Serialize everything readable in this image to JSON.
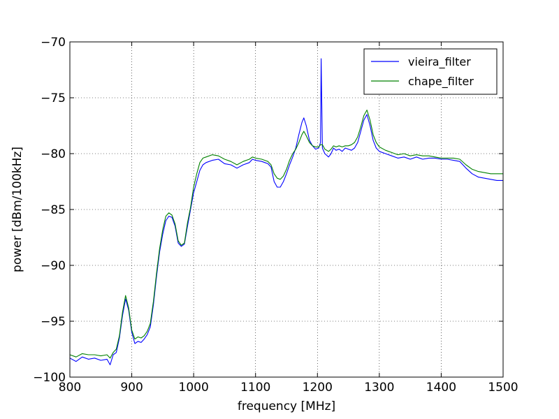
{
  "chart_data": {
    "type": "line",
    "title": "",
    "xlabel": "frequency [MHz]",
    "ylabel": "power [dBm/100kHz]",
    "xlim": [
      800,
      1500
    ],
    "ylim": [
      -100,
      -70
    ],
    "xticks": [
      800,
      900,
      1000,
      1100,
      1200,
      1300,
      1400,
      1500
    ],
    "yticks": [
      -100,
      -95,
      -90,
      -85,
      -80,
      -75,
      -70
    ],
    "xtick_labels": [
      "800",
      "900",
      "1000",
      "1100",
      "1200",
      "1300",
      "1400",
      "1500"
    ],
    "ytick_labels": [
      "−100",
      "−95",
      "−90",
      "−85",
      "−80",
      "−75",
      "−70"
    ],
    "grid": true,
    "legend_position": "top-right",
    "series": [
      {
        "name": "vieira_filter",
        "color": "#0000ff",
        "points": [
          [
            800,
            -98.3
          ],
          [
            810,
            -98.6
          ],
          [
            820,
            -98.2
          ],
          [
            830,
            -98.4
          ],
          [
            840,
            -98.3
          ],
          [
            850,
            -98.5
          ],
          [
            860,
            -98.4
          ],
          [
            865,
            -98.9
          ],
          [
            870,
            -98.0
          ],
          [
            875,
            -97.8
          ],
          [
            880,
            -96.5
          ],
          [
            885,
            -94.5
          ],
          [
            890,
            -93.0
          ],
          [
            895,
            -94.0
          ],
          [
            900,
            -96.0
          ],
          [
            905,
            -97.0
          ],
          [
            910,
            -96.8
          ],
          [
            915,
            -96.9
          ],
          [
            920,
            -96.6
          ],
          [
            925,
            -96.2
          ],
          [
            930,
            -95.5
          ],
          [
            935,
            -93.5
          ],
          [
            940,
            -91.0
          ],
          [
            945,
            -88.8
          ],
          [
            950,
            -87.2
          ],
          [
            955,
            -86.0
          ],
          [
            960,
            -85.6
          ],
          [
            965,
            -85.7
          ],
          [
            970,
            -86.5
          ],
          [
            975,
            -88.0
          ],
          [
            980,
            -88.3
          ],
          [
            985,
            -88.1
          ],
          [
            990,
            -86.5
          ],
          [
            995,
            -85.0
          ],
          [
            1000,
            -83.5
          ],
          [
            1005,
            -82.5
          ],
          [
            1010,
            -81.5
          ],
          [
            1015,
            -81.0
          ],
          [
            1020,
            -80.8
          ],
          [
            1030,
            -80.6
          ],
          [
            1040,
            -80.5
          ],
          [
            1050,
            -80.9
          ],
          [
            1060,
            -81.0
          ],
          [
            1070,
            -81.3
          ],
          [
            1080,
            -81.0
          ],
          [
            1090,
            -80.8
          ],
          [
            1095,
            -80.5
          ],
          [
            1100,
            -80.6
          ],
          [
            1110,
            -80.7
          ],
          [
            1120,
            -80.9
          ],
          [
            1125,
            -81.2
          ],
          [
            1130,
            -82.5
          ],
          [
            1135,
            -83.0
          ],
          [
            1140,
            -83.0
          ],
          [
            1145,
            -82.5
          ],
          [
            1150,
            -81.8
          ],
          [
            1155,
            -81.0
          ],
          [
            1160,
            -80.3
          ],
          [
            1165,
            -79.5
          ],
          [
            1170,
            -78.3
          ],
          [
            1175,
            -77.2
          ],
          [
            1178,
            -76.8
          ],
          [
            1182,
            -77.5
          ],
          [
            1187,
            -78.8
          ],
          [
            1192,
            -79.3
          ],
          [
            1197,
            -79.6
          ],
          [
            1202,
            -79.5
          ],
          [
            1205,
            -79.0
          ],
          [
            1206,
            -71.5
          ],
          [
            1208,
            -79.5
          ],
          [
            1212,
            -80.0
          ],
          [
            1218,
            -80.3
          ],
          [
            1222,
            -80.0
          ],
          [
            1226,
            -79.5
          ],
          [
            1230,
            -79.7
          ],
          [
            1235,
            -79.6
          ],
          [
            1240,
            -79.8
          ],
          [
            1245,
            -79.5
          ],
          [
            1250,
            -79.6
          ],
          [
            1255,
            -79.7
          ],
          [
            1260,
            -79.5
          ],
          [
            1265,
            -79.0
          ],
          [
            1270,
            -78.0
          ],
          [
            1275,
            -77.0
          ],
          [
            1280,
            -76.5
          ],
          [
            1285,
            -77.5
          ],
          [
            1290,
            -78.8
          ],
          [
            1295,
            -79.5
          ],
          [
            1300,
            -79.8
          ],
          [
            1310,
            -80.0
          ],
          [
            1320,
            -80.2
          ],
          [
            1330,
            -80.4
          ],
          [
            1340,
            -80.3
          ],
          [
            1350,
            -80.5
          ],
          [
            1360,
            -80.3
          ],
          [
            1370,
            -80.5
          ],
          [
            1380,
            -80.4
          ],
          [
            1390,
            -80.4
          ],
          [
            1400,
            -80.5
          ],
          [
            1410,
            -80.5
          ],
          [
            1420,
            -80.6
          ],
          [
            1430,
            -80.7
          ],
          [
            1440,
            -81.3
          ],
          [
            1450,
            -81.8
          ],
          [
            1460,
            -82.1
          ],
          [
            1470,
            -82.2
          ],
          [
            1480,
            -82.3
          ],
          [
            1490,
            -82.4
          ],
          [
            1500,
            -82.4
          ]
        ]
      },
      {
        "name": "chape_filter",
        "color": "#008000",
        "points": [
          [
            800,
            -98.0
          ],
          [
            810,
            -98.2
          ],
          [
            820,
            -97.9
          ],
          [
            830,
            -98.0
          ],
          [
            840,
            -98.0
          ],
          [
            850,
            -98.1
          ],
          [
            860,
            -98.0
          ],
          [
            865,
            -98.3
          ],
          [
            870,
            -97.8
          ],
          [
            875,
            -97.5
          ],
          [
            880,
            -96.3
          ],
          [
            885,
            -94.2
          ],
          [
            890,
            -92.7
          ],
          [
            895,
            -93.8
          ],
          [
            900,
            -95.8
          ],
          [
            905,
            -96.6
          ],
          [
            910,
            -96.4
          ],
          [
            915,
            -96.5
          ],
          [
            920,
            -96.3
          ],
          [
            925,
            -95.9
          ],
          [
            930,
            -95.2
          ],
          [
            935,
            -93.2
          ],
          [
            940,
            -90.7
          ],
          [
            945,
            -88.5
          ],
          [
            950,
            -86.8
          ],
          [
            955,
            -85.6
          ],
          [
            960,
            -85.3
          ],
          [
            965,
            -85.5
          ],
          [
            970,
            -86.3
          ],
          [
            975,
            -87.8
          ],
          [
            980,
            -88.2
          ],
          [
            985,
            -88.0
          ],
          [
            990,
            -86.2
          ],
          [
            995,
            -84.8
          ],
          [
            1000,
            -83.0
          ],
          [
            1005,
            -81.8
          ],
          [
            1010,
            -80.8
          ],
          [
            1015,
            -80.4
          ],
          [
            1020,
            -80.3
          ],
          [
            1030,
            -80.1
          ],
          [
            1040,
            -80.2
          ],
          [
            1050,
            -80.5
          ],
          [
            1060,
            -80.7
          ],
          [
            1070,
            -81.0
          ],
          [
            1080,
            -80.7
          ],
          [
            1090,
            -80.5
          ],
          [
            1095,
            -80.3
          ],
          [
            1100,
            -80.4
          ],
          [
            1110,
            -80.5
          ],
          [
            1120,
            -80.7
          ],
          [
            1125,
            -81.0
          ],
          [
            1130,
            -81.8
          ],
          [
            1135,
            -82.2
          ],
          [
            1140,
            -82.3
          ],
          [
            1145,
            -82.0
          ],
          [
            1150,
            -81.4
          ],
          [
            1155,
            -80.6
          ],
          [
            1160,
            -80.0
          ],
          [
            1165,
            -79.6
          ],
          [
            1170,
            -79.0
          ],
          [
            1175,
            -78.3
          ],
          [
            1178,
            -78.0
          ],
          [
            1182,
            -78.4
          ],
          [
            1187,
            -79.0
          ],
          [
            1192,
            -79.3
          ],
          [
            1197,
            -79.4
          ],
          [
            1202,
            -79.4
          ],
          [
            1205,
            -79.2
          ],
          [
            1208,
            -79.2
          ],
          [
            1212,
            -79.6
          ],
          [
            1218,
            -79.8
          ],
          [
            1222,
            -79.6
          ],
          [
            1226,
            -79.3
          ],
          [
            1230,
            -79.4
          ],
          [
            1235,
            -79.3
          ],
          [
            1240,
            -79.4
          ],
          [
            1245,
            -79.3
          ],
          [
            1250,
            -79.3
          ],
          [
            1255,
            -79.2
          ],
          [
            1260,
            -79.0
          ],
          [
            1265,
            -78.5
          ],
          [
            1270,
            -77.6
          ],
          [
            1275,
            -76.6
          ],
          [
            1280,
            -76.1
          ],
          [
            1285,
            -77.0
          ],
          [
            1290,
            -78.3
          ],
          [
            1295,
            -79.0
          ],
          [
            1300,
            -79.4
          ],
          [
            1310,
            -79.7
          ],
          [
            1320,
            -79.9
          ],
          [
            1330,
            -80.1
          ],
          [
            1340,
            -80.0
          ],
          [
            1350,
            -80.2
          ],
          [
            1360,
            -80.1
          ],
          [
            1370,
            -80.2
          ],
          [
            1380,
            -80.2
          ],
          [
            1390,
            -80.3
          ],
          [
            1400,
            -80.4
          ],
          [
            1410,
            -80.4
          ],
          [
            1420,
            -80.4
          ],
          [
            1430,
            -80.5
          ],
          [
            1440,
            -81.0
          ],
          [
            1450,
            -81.4
          ],
          [
            1460,
            -81.6
          ],
          [
            1470,
            -81.7
          ],
          [
            1480,
            -81.8
          ],
          [
            1490,
            -81.8
          ],
          [
            1500,
            -81.8
          ]
        ]
      }
    ]
  }
}
